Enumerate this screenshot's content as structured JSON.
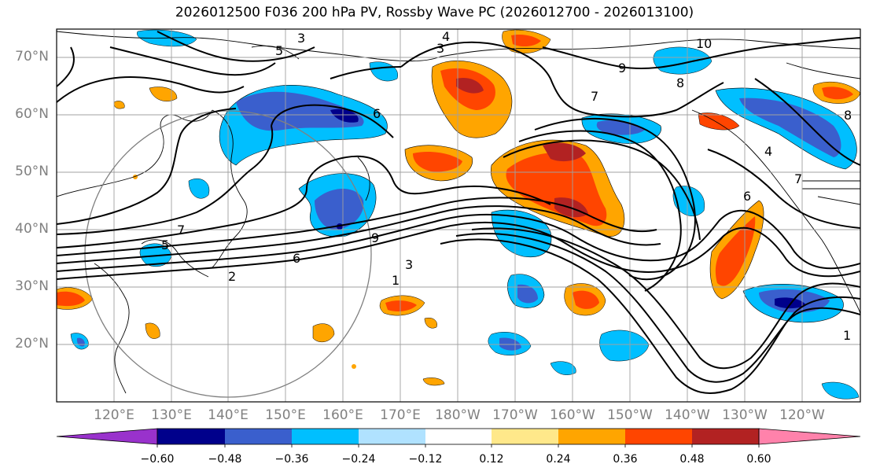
{
  "title": "2026012500 F036 200 hPa PV, Rossby Wave PC (2026012700 - 2026013100)",
  "map": {
    "lat_labels": [
      "70°N",
      "60°N",
      "50°N",
      "40°N",
      "30°N",
      "20°N"
    ],
    "lon_labels": [
      "120°E",
      "130°E",
      "140°E",
      "150°E",
      "160°E",
      "170°E",
      "180°W",
      "170°W",
      "160°W",
      "150°W",
      "140°W",
      "130°W",
      "120°W"
    ],
    "contour_labels": [
      "3",
      "4",
      "3",
      "5",
      "6",
      "10",
      "9",
      "8",
      "7",
      "9",
      "7",
      "6",
      "5",
      "2",
      "1",
      "3",
      "8",
      "7",
      "6",
      "4",
      "1"
    ]
  },
  "colorbar": {
    "tick_labels": [
      "−0.60",
      "−0.48",
      "−0.36",
      "−0.24",
      "−0.12",
      "0.12",
      "0.24",
      "0.36",
      "0.48",
      "0.60"
    ],
    "colors": [
      "#9932cc",
      "#00008b",
      "#3a5fcd",
      "#00bfff",
      "#b0e2ff",
      "#ffffff",
      "#ffe88a",
      "#ffa500",
      "#ff4500",
      "#b22222",
      "#ff82ab"
    ]
  }
}
